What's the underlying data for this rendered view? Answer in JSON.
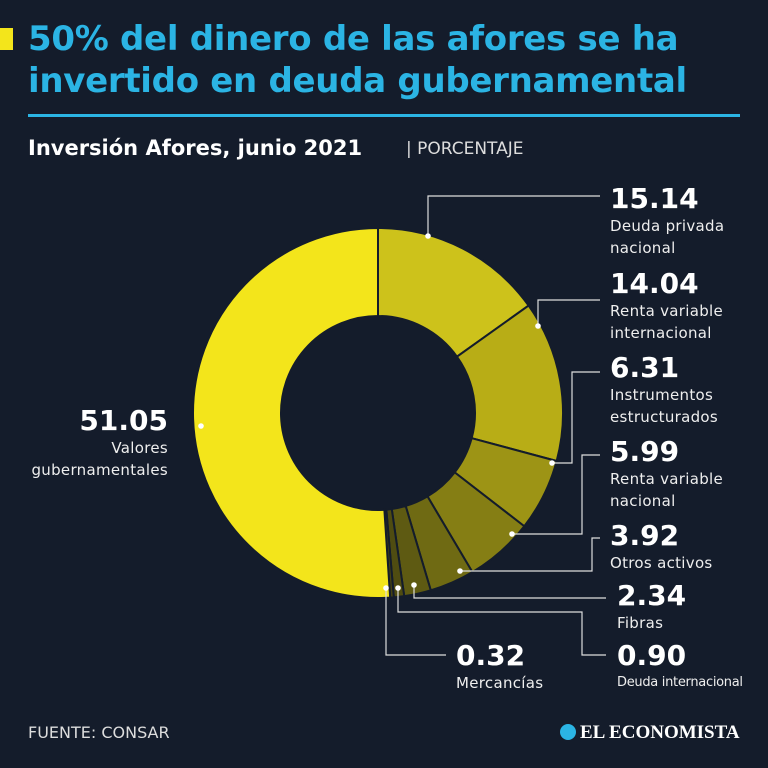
{
  "header": {
    "title": "50% del dinero de las afores se ha invertido en deuda gubernamental"
  },
  "chart_data": {
    "type": "donut",
    "title": "Inversión Afores, junio 2021",
    "subtitle": "| PORCENTAJE",
    "categories": [
      "Deuda privada nacional",
      "Renta variable internacional",
      "Instrumentos estructurados",
      "Renta variable nacional",
      "Otros activos",
      "Fibras",
      "Deuda internacional",
      "Mercancías",
      "Valores gubernamentales"
    ],
    "values": [
      15.14,
      14.04,
      6.31,
      5.99,
      3.92,
      2.34,
      0.9,
      0.32,
      51.05
    ],
    "value_labels": [
      "15.14",
      "14.04",
      "6.31",
      "5.99",
      "3.92",
      "2.34",
      "0.90",
      "0.32",
      "51.05"
    ],
    "colors": [
      "#cdc21b",
      "#b8ad16",
      "#9d9415",
      "#857e14",
      "#6f6a13",
      "#5e5a12",
      "#4f4c11",
      "#444211",
      "#f3e51b"
    ]
  },
  "footer": {
    "source": "FUENTE: CONSAR",
    "brand": "EL ECONOMISTA"
  }
}
